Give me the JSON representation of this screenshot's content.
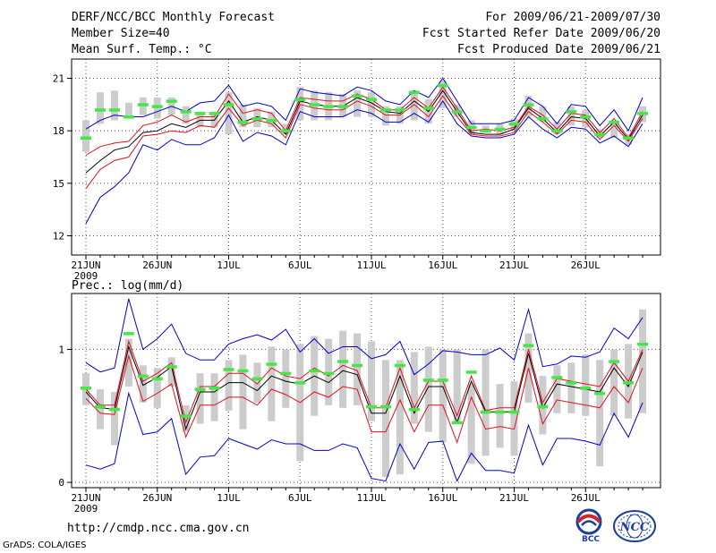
{
  "header": {
    "title": "DERF/NCC/BCC Monthly Forecast",
    "member_size": "Member Size=40",
    "variable": "Mean Surf. Temp.: °C",
    "period": "For 2009/06/21-2009/07/30",
    "fcst_started": "Fcst Started Refer Date 2009/06/20",
    "fcst_produced": "Fcst Produced Date 2009/06/21"
  },
  "footer": {
    "url": "http://cmdp.ncc.cma.gov.cn",
    "grads": "GrADS: COLA/IGES",
    "logo_bcc": "BCC",
    "logo_ncc": "NCC"
  },
  "colors": {
    "bar": "#cccccc",
    "mark": "#44e844",
    "mean": "#000000",
    "inner": "#e01020",
    "outer": "#0000cc",
    "grid": "#555555"
  },
  "chart_data": [
    {
      "type": "line",
      "title": "Mean Surf. Temp.: °C",
      "x_tick_labels": [
        "21JUN",
        "26JUN",
        "1JUL",
        "6JUL",
        "11JUL",
        "16JUL",
        "21JUL",
        "26JUL"
      ],
      "x_tick_days": [
        1,
        6,
        11,
        16,
        21,
        26,
        31,
        36
      ],
      "year_label": "2009",
      "ylim": [
        10.9,
        22.1
      ],
      "yticks": [
        12,
        15,
        18,
        21
      ],
      "ytick_labels": [
        "12",
        "15",
        "18",
        "21"
      ],
      "x": [
        1,
        2,
        3,
        4,
        5,
        6,
        7,
        8,
        9,
        10,
        11,
        12,
        13,
        14,
        15,
        16,
        17,
        18,
        19,
        20,
        21,
        22,
        23,
        24,
        25,
        26,
        27,
        28,
        29,
        30,
        31,
        32,
        33,
        34,
        35,
        36,
        37,
        38,
        39,
        40
      ],
      "bars": [
        [
          16.8,
          18.6
        ],
        [
          18.4,
          20.2
        ],
        [
          18.6,
          20.3
        ],
        [
          18.7,
          19.6
        ],
        [
          18.9,
          19.9
        ],
        [
          18.7,
          19.9
        ],
        [
          18.9,
          19.9
        ],
        [
          18.4,
          19.4
        ],
        [
          18.2,
          19.0
        ],
        [
          18.2,
          19.0
        ],
        [
          17.8,
          20.2
        ],
        [
          18.2,
          19.5
        ],
        [
          18.2,
          19.3
        ],
        [
          18.2,
          19.1
        ],
        [
          17.8,
          18.4
        ],
        [
          18.6,
          20.5
        ],
        [
          18.6,
          20.3
        ],
        [
          18.6,
          20.2
        ],
        [
          18.8,
          20.1
        ],
        [
          18.8,
          20.3
        ],
        [
          18.8,
          20.2
        ],
        [
          18.3,
          19.4
        ],
        [
          18.4,
          19.4
        ],
        [
          18.6,
          20.3
        ],
        [
          18.4,
          19.8
        ],
        [
          19.3,
          20.9
        ],
        [
          18.8,
          19.5
        ],
        [
          17.8,
          18.6
        ],
        [
          17.9,
          18.3
        ],
        [
          17.8,
          18.4
        ],
        [
          18.0,
          18.7
        ],
        [
          18.8,
          20.0
        ],
        [
          18.5,
          19.4
        ],
        [
          17.8,
          18.5
        ],
        [
          18.3,
          19.4
        ],
        [
          18.2,
          19.2
        ],
        [
          17.6,
          18.1
        ],
        [
          17.6,
          18.6
        ],
        [
          17.2,
          17.8
        ],
        [
          18.5,
          19.4
        ]
      ],
      "marks": [
        17.6,
        19.2,
        19.2,
        18.8,
        19.5,
        19.4,
        19.7,
        19.1,
        19.0,
        19.0,
        19.5,
        18.5,
        18.7,
        18.6,
        18.0,
        19.8,
        19.5,
        19.4,
        19.4,
        20.0,
        19.8,
        19.2,
        19.2,
        20.2,
        19.3,
        20.6,
        19.1,
        18.2,
        18.0,
        18.1,
        18.4,
        19.5,
        18.7,
        18.0,
        19.1,
        18.8,
        17.8,
        18.5,
        17.6,
        19.0
      ],
      "series": [
        {
          "name": "upper envelope",
          "values": [
            18.1,
            18.6,
            18.9,
            18.8,
            18.8,
            19.1,
            19.4,
            19.1,
            19.6,
            19.7,
            20.6,
            19.4,
            19.6,
            19.4,
            18.6,
            20.4,
            20.2,
            20.1,
            20.0,
            20.5,
            20.3,
            19.7,
            19.5,
            20.3,
            19.9,
            21.0,
            19.7,
            18.4,
            18.4,
            18.4,
            18.6,
            19.9,
            19.4,
            18.4,
            19.5,
            19.4,
            18.3,
            19.2,
            18.0,
            19.9
          ]
        },
        {
          "name": "upper spread",
          "values": [
            16.6,
            17.1,
            17.3,
            17.4,
            18.3,
            18.5,
            18.9,
            18.5,
            18.8,
            18.8,
            20.1,
            19.0,
            19.2,
            19.0,
            18.0,
            19.9,
            19.8,
            19.7,
            19.7,
            20.1,
            19.8,
            19.2,
            19.2,
            19.9,
            19.3,
            20.5,
            19.3,
            18.0,
            18.1,
            18.0,
            18.2,
            19.4,
            18.9,
            18.1,
            19.0,
            18.9,
            17.9,
            18.7,
            17.6,
            19.1
          ]
        },
        {
          "name": "ensemble mean",
          "values": [
            15.6,
            16.3,
            16.9,
            17.1,
            17.9,
            18.0,
            18.4,
            18.2,
            18.6,
            18.6,
            19.7,
            18.5,
            18.8,
            18.6,
            17.8,
            19.7,
            19.5,
            19.4,
            19.4,
            19.9,
            19.6,
            19.1,
            19.0,
            19.7,
            19.1,
            20.3,
            19.1,
            17.9,
            17.8,
            17.8,
            18.1,
            19.3,
            18.7,
            17.9,
            18.8,
            18.7,
            17.7,
            18.5,
            17.5,
            18.9
          ]
        },
        {
          "name": "lower spread",
          "values": [
            14.7,
            15.8,
            16.3,
            16.5,
            17.7,
            17.8,
            18.0,
            17.9,
            18.3,
            18.2,
            19.3,
            18.3,
            18.6,
            18.4,
            17.6,
            19.5,
            19.3,
            19.2,
            19.2,
            19.7,
            19.4,
            18.9,
            18.9,
            19.5,
            18.8,
            20.0,
            18.8,
            17.8,
            17.7,
            17.7,
            17.9,
            19.1,
            18.5,
            17.8,
            18.6,
            18.5,
            17.5,
            18.3,
            17.4,
            18.7
          ]
        },
        {
          "name": "lower envelope",
          "values": [
            12.7,
            14.2,
            14.8,
            15.6,
            17.2,
            16.9,
            17.5,
            17.2,
            17.2,
            17.6,
            18.9,
            17.4,
            17.9,
            17.7,
            17.2,
            19.1,
            18.8,
            18.8,
            18.8,
            19.2,
            19.0,
            18.5,
            18.5,
            19.0,
            18.5,
            19.7,
            18.4,
            17.7,
            17.6,
            17.6,
            17.8,
            18.8,
            18.1,
            17.6,
            18.2,
            18.1,
            17.3,
            17.7,
            17.1,
            18.4
          ]
        }
      ]
    },
    {
      "type": "line",
      "title": "Prec.: log(mm/d)",
      "x_tick_labels": [
        "21JUN",
        "26JUN",
        "1JUL",
        "6JUL",
        "11JUL",
        "16JUL",
        "21JUL",
        "26JUL"
      ],
      "x_tick_days": [
        1,
        6,
        11,
        16,
        21,
        26,
        31,
        36
      ],
      "year_label": "2009",
      "ylim": [
        -0.04,
        1.42
      ],
      "yticks": [
        0,
        1
      ],
      "ytick_labels": [
        "0",
        "1"
      ],
      "x": [
        1,
        2,
        3,
        4,
        5,
        6,
        7,
        8,
        9,
        10,
        11,
        12,
        13,
        14,
        15,
        16,
        17,
        18,
        19,
        20,
        21,
        22,
        23,
        24,
        25,
        26,
        27,
        28,
        29,
        30,
        31,
        32,
        33,
        34,
        35,
        36,
        37,
        38,
        39,
        40
      ],
      "bars": [
        [
          0.58,
          0.82
        ],
        [
          0.4,
          0.7
        ],
        [
          0.28,
          0.68
        ],
        [
          0.72,
          1.08
        ],
        [
          0.6,
          0.88
        ],
        [
          0.56,
          0.86
        ],
        [
          0.72,
          0.94
        ],
        [
          0.38,
          0.58
        ],
        [
          0.44,
          0.82
        ],
        [
          0.46,
          0.82
        ],
        [
          0.54,
          0.92
        ],
        [
          0.4,
          0.96
        ],
        [
          0.6,
          0.9
        ],
        [
          0.46,
          1.02
        ],
        [
          0.56,
          1.0
        ],
        [
          0.16,
          1.04
        ],
        [
          0.5,
          1.1
        ],
        [
          0.58,
          1.08
        ],
        [
          0.56,
          1.14
        ],
        [
          0.58,
          1.12
        ],
        [
          0.46,
          1.06
        ],
        [
          0.04,
          0.92
        ],
        [
          0.06,
          0.92
        ],
        [
          0.44,
          0.98
        ],
        [
          0.38,
          1.02
        ],
        [
          0.3,
          1.0
        ],
        [
          0.46,
          1.0
        ],
        [
          0.14,
          0.74
        ],
        [
          0.2,
          1.0
        ],
        [
          0.26,
          0.74
        ],
        [
          0.2,
          0.76
        ],
        [
          0.6,
          1.12
        ],
        [
          0.36,
          0.8
        ],
        [
          0.52,
          0.88
        ],
        [
          0.52,
          0.9
        ],
        [
          0.5,
          0.96
        ],
        [
          0.12,
          0.92
        ],
        [
          0.5,
          1.0
        ],
        [
          0.48,
          1.04
        ],
        [
          0.52,
          1.3
        ]
      ],
      "marks": [
        0.71,
        0.57,
        0.55,
        1.12,
        0.8,
        0.78,
        0.87,
        0.5,
        0.7,
        0.71,
        0.85,
        0.84,
        0.78,
        0.89,
        0.82,
        0.75,
        0.84,
        0.82,
        0.91,
        0.88,
        0.57,
        0.57,
        0.88,
        0.55,
        0.77,
        0.77,
        0.45,
        0.83,
        0.53,
        0.53,
        0.53,
        1.03,
        0.57,
        0.79,
        0.75,
        0.71,
        0.67,
        0.91,
        0.75,
        1.04
      ],
      "series": [
        {
          "name": "upper envelope",
          "values": [
            0.9,
            0.83,
            0.86,
            1.38,
            1.0,
            1.08,
            1.19,
            0.97,
            0.92,
            0.92,
            1.04,
            1.08,
            1.11,
            1.07,
            1.15,
            0.98,
            1.08,
            0.97,
            1.02,
            1.02,
            0.93,
            0.96,
            1.06,
            0.81,
            0.89,
            0.99,
            0.98,
            0.96,
            0.96,
            1.01,
            0.92,
            1.3,
            0.87,
            0.89,
            0.95,
            0.94,
            0.98,
            1.16,
            1.08,
            1.24
          ]
        },
        {
          "name": "upper spread",
          "values": [
            0.7,
            0.58,
            0.58,
            1.06,
            0.76,
            0.82,
            0.9,
            0.45,
            0.72,
            0.72,
            0.82,
            0.82,
            0.74,
            0.86,
            0.8,
            0.78,
            0.86,
            0.8,
            0.88,
            0.84,
            0.56,
            0.56,
            0.86,
            0.56,
            0.76,
            0.76,
            0.5,
            0.8,
            0.54,
            0.56,
            0.56,
            1.0,
            0.6,
            0.78,
            0.76,
            0.74,
            0.72,
            0.9,
            0.76,
            1.0
          ]
        },
        {
          "name": "ensemble mean",
          "values": [
            0.68,
            0.56,
            0.55,
            1.02,
            0.73,
            0.79,
            0.87,
            0.4,
            0.68,
            0.68,
            0.75,
            0.75,
            0.69,
            0.8,
            0.76,
            0.74,
            0.8,
            0.75,
            0.84,
            0.81,
            0.52,
            0.52,
            0.8,
            0.52,
            0.72,
            0.72,
            0.45,
            0.76,
            0.53,
            0.53,
            0.53,
            0.97,
            0.56,
            0.74,
            0.72,
            0.7,
            0.68,
            0.86,
            0.72,
            0.98
          ]
        },
        {
          "name": "lower spread",
          "values": [
            0.63,
            0.52,
            0.51,
            0.95,
            0.61,
            0.67,
            0.74,
            0.34,
            0.58,
            0.58,
            0.64,
            0.64,
            0.58,
            0.7,
            0.66,
            0.6,
            0.68,
            0.64,
            0.72,
            0.7,
            0.38,
            0.38,
            0.62,
            0.38,
            0.58,
            0.58,
            0.3,
            0.64,
            0.4,
            0.42,
            0.4,
            0.86,
            0.44,
            0.62,
            0.6,
            0.58,
            0.56,
            0.72,
            0.6,
            0.86
          ]
        },
        {
          "name": "lower envelope",
          "values": [
            0.13,
            0.1,
            0.14,
            0.67,
            0.36,
            0.38,
            0.48,
            0.06,
            0.19,
            0.2,
            0.33,
            0.29,
            0.25,
            0.32,
            0.29,
            0.29,
            0.24,
            0.24,
            0.29,
            0.26,
            0.03,
            0.01,
            0.29,
            0.1,
            0.3,
            0.31,
            0.01,
            0.22,
            0.09,
            0.09,
            0.07,
            0.43,
            0.13,
            0.33,
            0.33,
            0.31,
            0.28,
            0.52,
            0.34,
            0.6
          ]
        }
      ]
    }
  ]
}
